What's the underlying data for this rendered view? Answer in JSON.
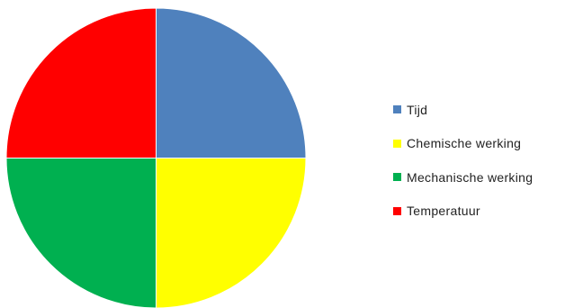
{
  "chart_data": {
    "type": "pie",
    "title": "",
    "legend_position": "right",
    "slices": [
      {
        "label": "Tijd",
        "value": 25,
        "color": "#4f81bd"
      },
      {
        "label": "Chemische werking",
        "value": 25,
        "color": "#ffff00"
      },
      {
        "label": "Mechanische werking",
        "value": 25,
        "color": "#00b050"
      },
      {
        "label": "Temperatuur",
        "value": 25,
        "color": "#ff0000"
      }
    ]
  }
}
